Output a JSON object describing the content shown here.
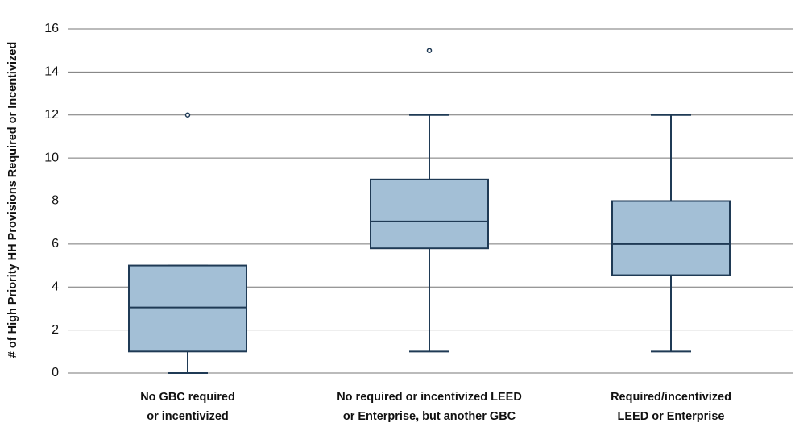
{
  "chart_data": {
    "type": "box",
    "ylabel": "# of High Priority HH Provisions Required or Incentivized",
    "categories": [
      [
        "No GBC required",
        "or incentivized"
      ],
      [
        "No required or incentivized LEED",
        "or Enterprise,  but another GBC"
      ],
      [
        "Required/incentivized",
        "LEED or Enterprise"
      ]
    ],
    "boxes": [
      {
        "min": 0,
        "q1": 1,
        "median": 3.05,
        "q3": 5,
        "max": 5,
        "outliers": [
          12
        ]
      },
      {
        "min": 1,
        "q1": 5.8,
        "median": 7.05,
        "q3": 9,
        "max": 12,
        "outliers": [
          15
        ]
      },
      {
        "min": 1,
        "q1": 4.55,
        "median": 6,
        "q3": 8,
        "max": 12,
        "outliers": []
      }
    ],
    "color": "#a3bfd6",
    "edge_color": "#1f3a55",
    "ylim": [
      0,
      16
    ],
    "yticks": [
      0,
      2,
      4,
      6,
      8,
      10,
      12,
      14,
      16
    ],
    "grid": true
  }
}
